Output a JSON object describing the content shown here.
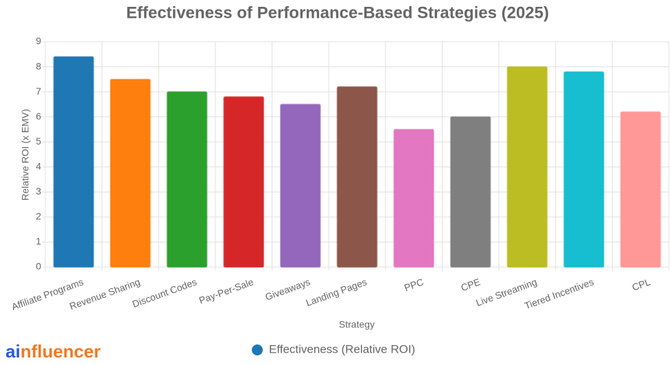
{
  "chart_data": {
    "type": "bar",
    "title": "Effectiveness of Performance-Based Strategies (2025)",
    "x_label": "Strategy",
    "y_label": "Relative ROI (x EMV)",
    "categories": [
      "Affiliate Programs",
      "Revenue Sharing",
      "Discount Codes",
      "Pay-Per-Sale",
      "Giveaways",
      "Landing Pages",
      "PPC",
      "CPE",
      "Live Streaming",
      "Tiered Incentives",
      "CPL"
    ],
    "series": [
      {
        "name": "Effectiveness (Relative ROI)",
        "color": "#1f77b4",
        "values": [
          8.4,
          7.5,
          7.0,
          6.8,
          6.5,
          7.2,
          5.5,
          6.0,
          8.0,
          7.8,
          6.2
        ],
        "colors": [
          "#1f77b4",
          "#ff7f0e",
          "#2ca02c",
          "#d62728",
          "#9467bd",
          "#8c564b",
          "#e377c2",
          "#7f7f7f",
          "#bcbd22",
          "#17becf",
          "#ff9896"
        ]
      }
    ],
    "ylim": [
      0,
      9
    ],
    "yticks": [
      0,
      1,
      2,
      3,
      4,
      5,
      6,
      7,
      8,
      9
    ],
    "grid": true,
    "legend": "bottom"
  },
  "logo": {
    "part1": "ai",
    "part2": "nfluencer"
  }
}
